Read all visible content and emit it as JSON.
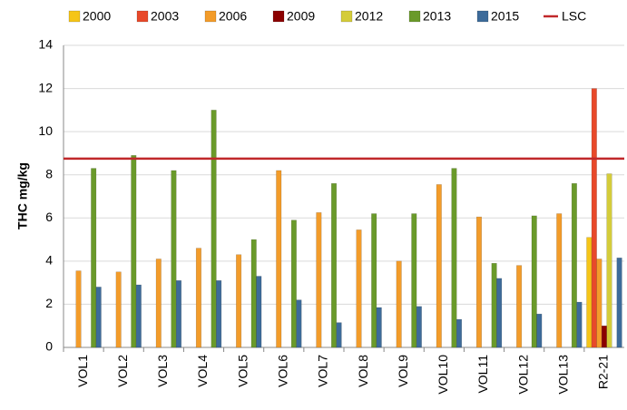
{
  "chart_data": {
    "type": "bar",
    "ylabel": "THC mg/kg",
    "categories": [
      "VOL1",
      "VOL2",
      "VOL3",
      "VOL4",
      "VOL5",
      "VOL6",
      "VOL7",
      "VOL8",
      "VOL9",
      "VOL10",
      "VOL11",
      "VOL12",
      "VOL13",
      "R2-21"
    ],
    "series": [
      {
        "name": "2000",
        "color": "#f5c518",
        "values": [
          null,
          null,
          null,
          null,
          null,
          null,
          null,
          null,
          null,
          null,
          null,
          null,
          null,
          5.1
        ]
      },
      {
        "name": "2003",
        "color": "#e8492a",
        "values": [
          null,
          null,
          null,
          null,
          null,
          null,
          null,
          null,
          null,
          null,
          null,
          null,
          null,
          12.0
        ]
      },
      {
        "name": "2006",
        "color": "#f39c2a",
        "values": [
          3.55,
          3.5,
          4.1,
          4.6,
          4.3,
          8.2,
          6.25,
          5.45,
          4.0,
          7.55,
          6.05,
          3.8,
          6.2,
          4.1
        ]
      },
      {
        "name": "2009",
        "color": "#8b0000",
        "values": [
          null,
          null,
          null,
          null,
          null,
          null,
          null,
          null,
          null,
          null,
          null,
          null,
          null,
          1.0
        ]
      },
      {
        "name": "2012",
        "color": "#d4cc3a",
        "values": [
          null,
          null,
          null,
          null,
          null,
          null,
          null,
          null,
          null,
          null,
          null,
          null,
          null,
          8.05
        ]
      },
      {
        "name": "2013",
        "color": "#6a9a2a",
        "values": [
          8.3,
          8.9,
          8.2,
          11.0,
          5.0,
          5.9,
          7.6,
          6.2,
          6.2,
          8.3,
          3.9,
          6.1,
          7.6,
          null
        ]
      },
      {
        "name": "2015",
        "color": "#3d6b9a",
        "values": [
          2.8,
          2.9,
          3.1,
          3.1,
          3.3,
          2.2,
          1.15,
          1.85,
          1.9,
          1.3,
          3.2,
          1.55,
          2.1,
          4.15
        ]
      }
    ],
    "reference_line": {
      "name": "LSC",
      "color": "#c0282a",
      "value": 8.75
    },
    "ylim": [
      0,
      14
    ],
    "yticks": [
      0,
      2,
      4,
      6,
      8,
      10,
      12,
      14
    ],
    "grid": true
  }
}
